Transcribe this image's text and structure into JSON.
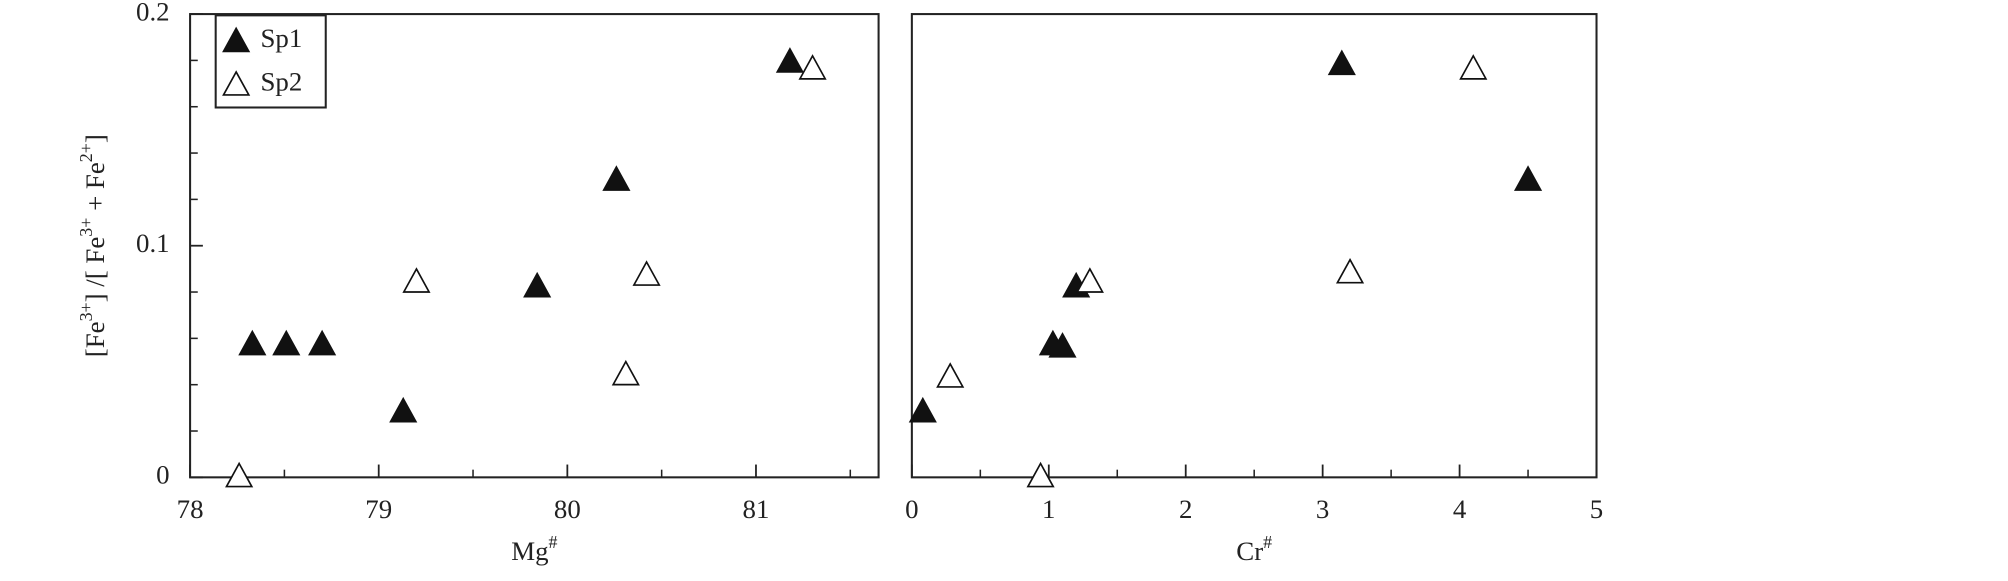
{
  "chart_data": [
    {
      "type": "scatter",
      "xlabel": [
        "Mg",
        "#"
      ],
      "ylabel": [
        "[Fe",
        "3+",
        "] /[ Fe",
        "3+",
        " + Fe",
        "2+",
        "]"
      ],
      "xlim": [
        78,
        81.65
      ],
      "xticks": [
        78,
        79,
        80,
        81
      ],
      "xminor_ticks": [
        78.5,
        79.5,
        80.5,
        81.5
      ],
      "ylim": [
        0,
        0.2
      ],
      "yticks": [
        0,
        0.1,
        0.2
      ],
      "yminor_ticks": [
        0.02,
        0.04,
        0.06,
        0.08,
        0.12,
        0.14,
        0.16,
        0.18
      ],
      "legend": "upper left",
      "series": [
        {
          "name": "Sp1",
          "marker": "filled",
          "color": "#111111",
          "x": [
            78.33,
            78.51,
            78.7,
            79.13,
            79.84,
            80.26,
            81.18
          ],
          "values": [
            0.057,
            0.057,
            0.057,
            0.028,
            0.082,
            0.128,
            0.179
          ]
        },
        {
          "name": "Sp2",
          "marker": "open",
          "color": "#111111",
          "x": [
            78.26,
            79.2,
            80.31,
            80.42,
            81.3
          ],
          "values": [
            0.0,
            0.084,
            0.044,
            0.087,
            0.176
          ]
        }
      ]
    },
    {
      "type": "scatter",
      "xlabel": [
        "Cr",
        "#"
      ],
      "xlim": [
        0,
        5
      ],
      "xticks": [
        0,
        1,
        2,
        3,
        4,
        5
      ],
      "xminor_ticks": [
        0.5,
        1.5,
        2.5,
        3.5,
        4.5
      ],
      "ylim": [
        0,
        0.2
      ],
      "series": [
        {
          "name": "Sp1",
          "marker": "filled",
          "color": "#111111",
          "x": [
            0.08,
            1.03,
            1.1,
            1.2,
            3.14,
            4.5
          ],
          "values": [
            0.028,
            0.057,
            0.056,
            0.082,
            0.178,
            0.128
          ]
        },
        {
          "name": "Sp2",
          "marker": "open",
          "color": "#111111",
          "x": [
            0.28,
            0.94,
            1.3,
            3.2,
            4.1
          ],
          "values": [
            0.043,
            0.0,
            0.084,
            0.088,
            0.176
          ]
        }
      ]
    }
  ]
}
